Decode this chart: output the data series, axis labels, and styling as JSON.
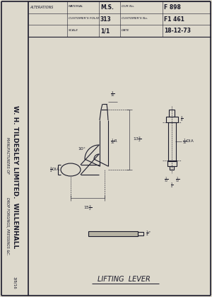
{
  "bg_color": "#ddd9cc",
  "page_bg": "#ddd9cc",
  "border_color": "#1a1a2a",
  "sidebar_text1": "W. H. TILDESLEY LIMITED.  WILLENHALL",
  "sidebar_text2": "MANUFACTURERS OF",
  "sidebar_text3": "DROP FORGINGS, PRESSINGS &C.",
  "sidebar_stamp": "3/8/16",
  "title_row1": [
    "ALTERATIONS",
    "MATERIAL",
    "M.S.",
    "OUR No.",
    "F 898"
  ],
  "title_row2": [
    "",
    "CUSTOMER'S FOLIO",
    "313",
    "CUSTOMER'S No.",
    "F1 461"
  ],
  "title_row3": [
    "",
    "SCALE",
    "1/1",
    "DATE",
    "18-12-73"
  ],
  "drawing_title": "LIFTING  LEVER",
  "line_color": "#1a1a2a",
  "dim_color": "#1a1a2a",
  "lw_main": 0.8,
  "lw_thin": 0.4,
  "lw_border": 1.2
}
